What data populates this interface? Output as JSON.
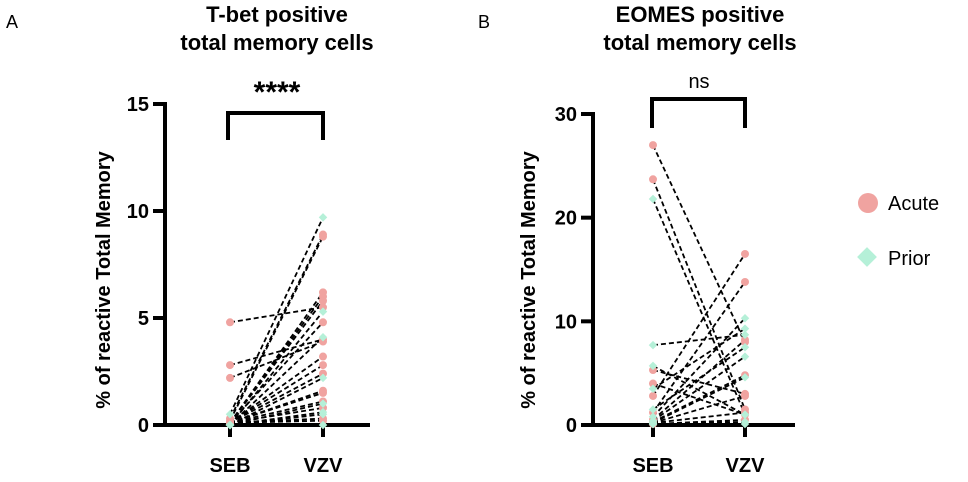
{
  "colors": {
    "acute": "#f0a3a0",
    "prior": "#b5f0d8",
    "line": "#000000"
  },
  "legend": [
    {
      "label": "Acute",
      "shape": "circle"
    },
    {
      "label": "Prior",
      "shape": "diamond"
    }
  ],
  "chart_data": [
    {
      "panel": "A",
      "type": "line",
      "title_line1": "T-bet positive",
      "title_line2": "total memory cells",
      "ylabel": "% of reactive Total Memory",
      "categories": [
        "SEB",
        "VZV"
      ],
      "ylim": [
        0,
        15
      ],
      "yticks": [
        "0",
        "5",
        "10",
        "15"
      ],
      "significance": "****",
      "series": [
        {
          "group": "Acute",
          "pairs": [
            [
              4.8,
              5.5
            ],
            [
              2.8,
              4.0
            ],
            [
              2.2,
              3.9
            ],
            [
              0.3,
              8.9
            ],
            [
              0.2,
              8.8
            ],
            [
              0.1,
              6.2
            ],
            [
              0.1,
              6.0
            ],
            [
              0.1,
              5.8
            ],
            [
              0.1,
              4.8
            ],
            [
              0.1,
              3.2
            ],
            [
              0.1,
              2.8
            ],
            [
              0.1,
              2.4
            ],
            [
              0.1,
              1.6
            ],
            [
              0.1,
              1.5
            ],
            [
              0.1,
              1.1
            ],
            [
              0.1,
              0.8
            ],
            [
              0.1,
              0.3
            ],
            [
              0.1,
              0.2
            ]
          ]
        },
        {
          "group": "Prior",
          "pairs": [
            [
              0.5,
              9.7
            ],
            [
              0.0,
              5.3
            ],
            [
              0.0,
              4.1
            ],
            [
              0.0,
              2.2
            ],
            [
              0.0,
              1.0
            ],
            [
              0.0,
              0.6
            ],
            [
              0.0,
              0.5
            ],
            [
              0.0,
              0.0
            ]
          ]
        }
      ]
    },
    {
      "panel": "B",
      "type": "line",
      "title_line1": "EOMES positive",
      "title_line2": "total memory cells",
      "ylabel": "% of reactive Total Memory",
      "categories": [
        "SEB",
        "VZV"
      ],
      "ylim": [
        0,
        30
      ],
      "yticks": [
        "0",
        "10",
        "20",
        "30"
      ],
      "significance": "ns",
      "series": [
        {
          "group": "Acute",
          "pairs": [
            [
              27,
              8
            ],
            [
              23.7,
              1.5
            ],
            [
              5.3,
              3
            ],
            [
              4,
              1
            ],
            [
              2.8,
              16.5
            ],
            [
              1.2,
              13.8
            ],
            [
              0.5,
              8.2
            ],
            [
              0.3,
              4.8
            ],
            [
              0.2,
              2.8
            ],
            [
              0.2,
              1.2
            ],
            [
              0.1,
              0.5
            ]
          ]
        },
        {
          "group": "Prior",
          "pairs": [
            [
              21.8,
              1
            ],
            [
              7.7,
              8.7
            ],
            [
              5.7,
              1.0
            ],
            [
              3.5,
              9.3
            ],
            [
              1.5,
              7.5
            ],
            [
              0.8,
              10.3
            ],
            [
              0.4,
              6.6
            ],
            [
              0.2,
              4.6
            ],
            [
              0.1,
              0.3
            ],
            [
              0.1,
              0.1
            ]
          ]
        }
      ]
    }
  ]
}
